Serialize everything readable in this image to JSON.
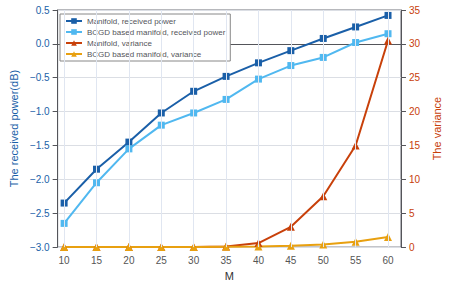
{
  "chart_data": {
    "type": "line",
    "xlabel": "M",
    "ylabel": "The received power(dB)",
    "y2label": "The variance",
    "x": [
      10,
      15,
      20,
      25,
      30,
      35,
      40,
      45,
      50,
      55,
      60
    ],
    "xlim": [
      9,
      62
    ],
    "xticks": [
      10,
      15,
      20,
      25,
      30,
      35,
      40,
      45,
      50,
      55,
      60
    ],
    "ylim": [
      -3.0,
      0.5
    ],
    "yticks": [
      {
        "value": -3.0,
        "label": "−3.0"
      },
      {
        "value": -2.5,
        "label": "−2.5"
      },
      {
        "value": -2.0,
        "label": "−2.0"
      },
      {
        "value": -1.5,
        "label": "−1.5"
      },
      {
        "value": -1.0,
        "label": "−1.0"
      },
      {
        "value": -0.5,
        "label": "−0.5"
      },
      {
        "value": 0.0,
        "label": "0.0"
      },
      0.5
    ],
    "y2lim": [
      0,
      35
    ],
    "y2ticks": [
      0,
      5,
      10,
      15,
      20,
      25,
      30,
      35
    ],
    "grid": true,
    "legend": "upper left",
    "series": [
      {
        "name": "Manifold, received power",
        "color": "#1a5fa8",
        "marker": "square",
        "axis": "y",
        "values": [
          -2.35,
          -1.85,
          -1.45,
          -1.02,
          -0.7,
          -0.48,
          -0.28,
          -0.1,
          0.08,
          0.25,
          0.42
        ]
      },
      {
        "name": "BCGD based manifold, received power",
        "color": "#50b8f0",
        "marker": "square",
        "axis": "y",
        "values": [
          -2.65,
          -2.05,
          -1.55,
          -1.2,
          -1.02,
          -0.82,
          -0.52,
          -0.32,
          -0.2,
          0.02,
          0.15
        ]
      },
      {
        "name": "Manifold, variance",
        "color": "#c8400a",
        "marker": "triangle",
        "axis": "y2",
        "values": [
          0.01,
          0.01,
          0.01,
          0.01,
          0.01,
          0.1,
          0.6,
          3.0,
          7.5,
          15.0,
          30.5
        ]
      },
      {
        "name": "BCGD based manifold, variance",
        "color": "#e8a010",
        "marker": "triangle",
        "axis": "y2",
        "values": [
          0.01,
          0.01,
          0.01,
          0.01,
          0.01,
          0.05,
          0.1,
          0.2,
          0.4,
          0.8,
          1.5
        ]
      }
    ]
  }
}
